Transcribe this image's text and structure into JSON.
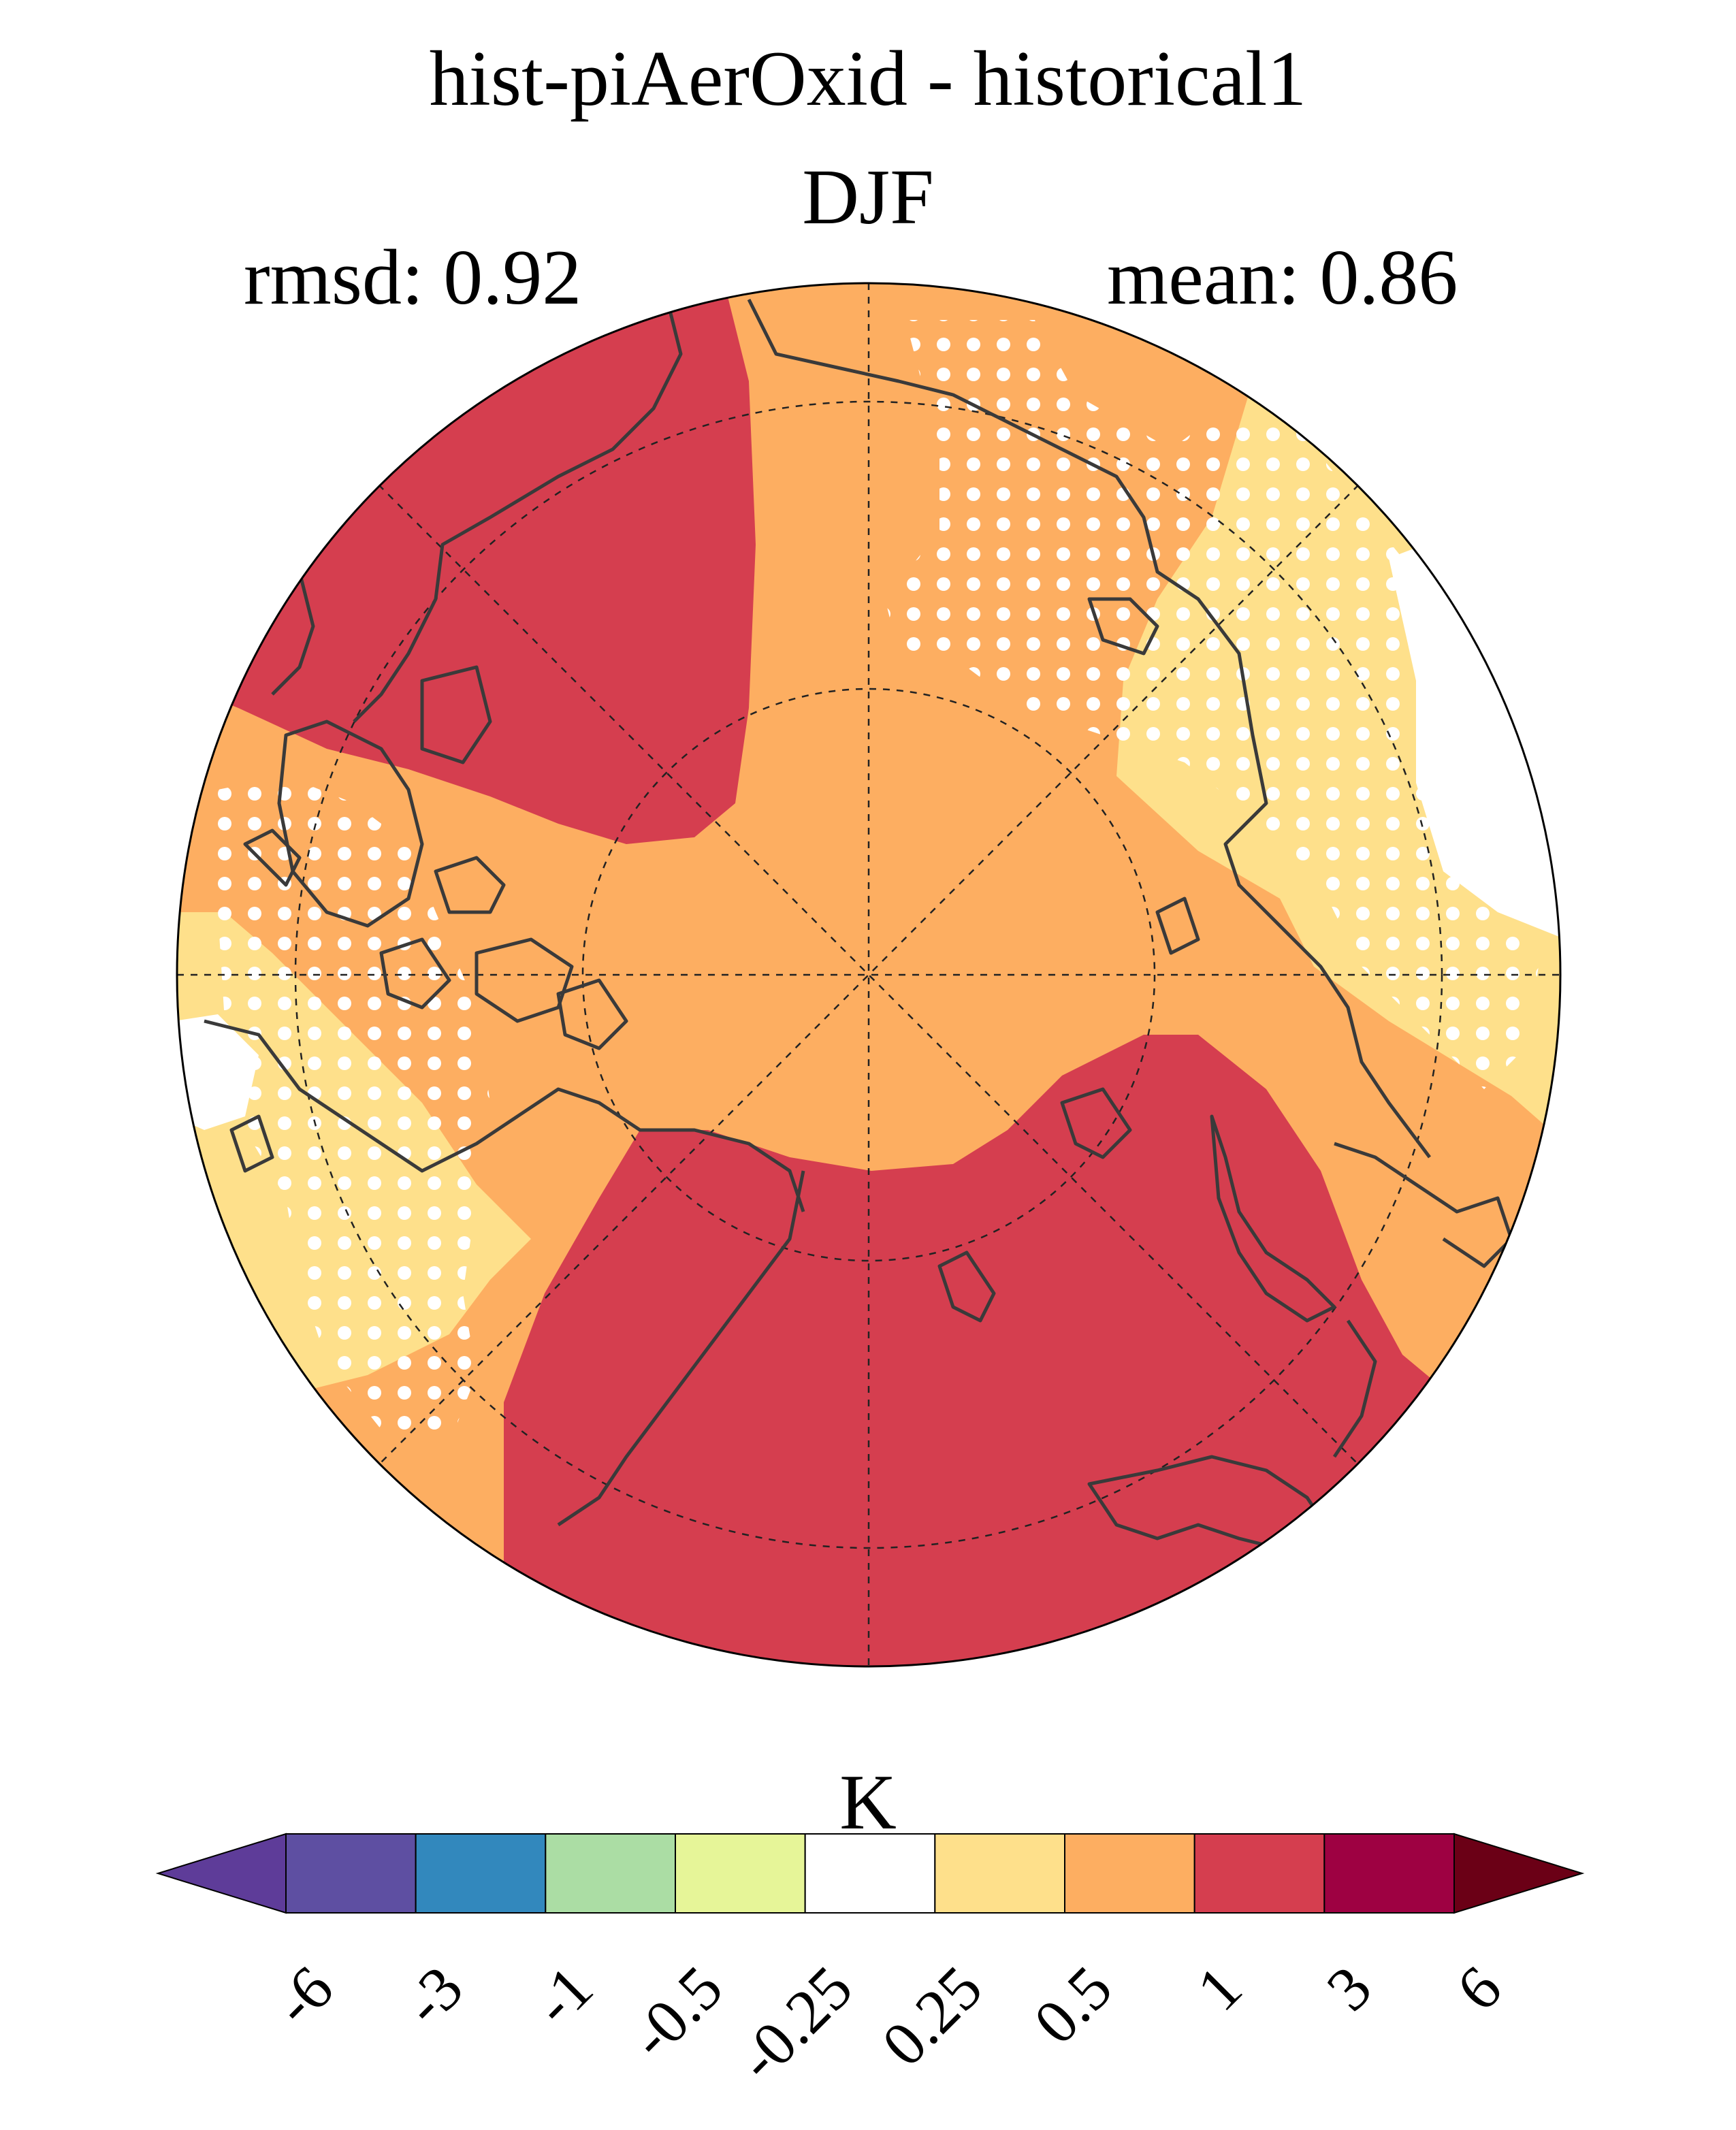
{
  "header": {
    "title": "hist-piAerOxid - historical1",
    "season": "DJF",
    "rmsd": "rmsd: 0.92",
    "mean": "mean: 0.86"
  },
  "map": {
    "projection": "north-polar-stereographic",
    "graticule": "dashed",
    "stippling": "white dots mark regions"
  },
  "colorbar": {
    "units": "K",
    "extend": "both",
    "tick_labels": [
      "-6",
      "-3",
      "-1",
      "-0.5",
      "-0.25",
      "0.25",
      "0.5",
      "1",
      "3",
      "6"
    ],
    "colors": [
      "#5e3c99",
      "#5e4fa2",
      "#3288bd",
      "#abdda4",
      "#e6f598",
      "#ffffff",
      "#fee08b",
      "#fdae61",
      "#d53e4f",
      "#9e0142",
      "#6b0016"
    ]
  }
}
